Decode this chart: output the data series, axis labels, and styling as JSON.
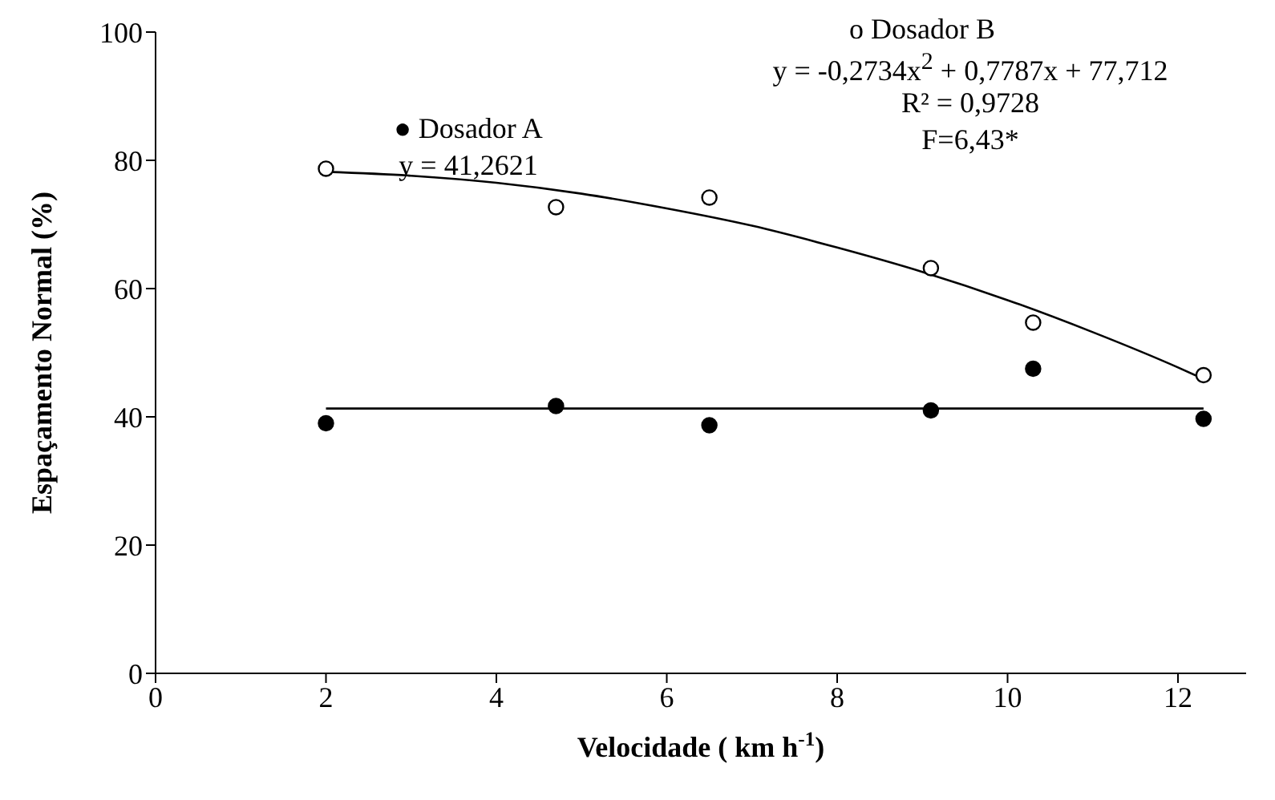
{
  "chart_data": {
    "type": "scatter",
    "xlabel": "Velocidade ( km h$^{-1}$)",
    "ylabel": "Espaçamento Normal (%)",
    "xlim": [
      0,
      12.8
    ],
    "xticks": [
      0,
      2,
      4,
      6,
      8,
      10,
      12
    ],
    "ylim": [
      0,
      100
    ],
    "yticks": [
      0,
      20,
      40,
      60,
      80,
      100
    ],
    "grid": false,
    "legend": false,
    "series": [
      {
        "marker": "circle",
        "color": "#000000",
        "x": [
          2,
          4.7,
          6.5,
          9.1,
          10.3,
          12.3
        ],
        "values": [
          39,
          41.7,
          38.7,
          41,
          47.5,
          39.7
        ]
      },
      {
        "marker": "circle",
        "color": "#ffffff",
        "x": [
          2,
          4.7,
          6.5,
          9.1,
          10.3,
          12.3
        ],
        "values": [
          78.7,
          72.7,
          74.2,
          63.2,
          54.7,
          46.5
        ]
      },
      {
        "type": "line",
        "marker": "none",
        "color": "#000000",
        "x": [
          2,
          12.3
        ],
        "values": [
          41.3,
          41.3
        ]
      },
      {
        "type": "line",
        "marker": "none",
        "color": "#000000",
        "x": [
          2,
          3,
          4,
          5,
          6,
          7,
          8,
          9,
          10,
          11,
          12,
          12.3
        ],
        "values": [
          78.2,
          77.6,
          76.5,
          74.8,
          72.5,
          69.8,
          66.4,
          62.6,
          58.2,
          53.2,
          47.7,
          45.9
        ]
      }
    ],
    "annotations": [
      "● Dosador A",
      "y = 41,2621",
      "o Dosador B",
      "y = -0,2734x$^{2}$ + 0,7787x + 77,712",
      "R² = 0,9728",
      "F=6,43*"
    ]
  }
}
